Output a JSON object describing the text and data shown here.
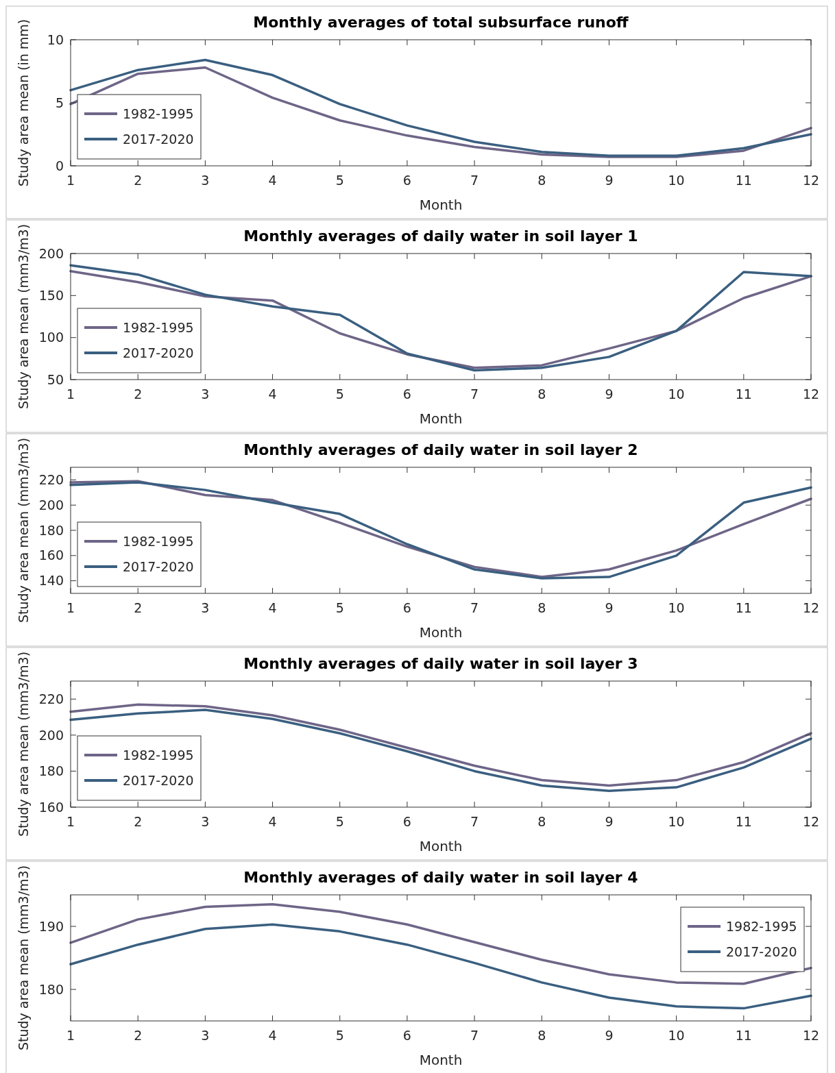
{
  "chart_data": [
    {
      "type": "line",
      "title": "Monthly averages of total subsurface runoff",
      "xlabel": "Month",
      "ylabel": "Study area mean (in mm)",
      "x": [
        1,
        2,
        3,
        4,
        5,
        6,
        7,
        8,
        9,
        10,
        11,
        12
      ],
      "xlim": [
        1,
        12
      ],
      "xticks": [
        1,
        2,
        3,
        4,
        5,
        6,
        7,
        8,
        9,
        10,
        11,
        12
      ],
      "ylim": [
        0,
        10
      ],
      "yticks": [
        0,
        5,
        10
      ],
      "grid": false,
      "legend": "bottom left",
      "series": [
        {
          "name": "1982-1995",
          "color": "#6e6587",
          "values": [
            4.9,
            7.3,
            7.8,
            5.4,
            3.6,
            2.4,
            1.5,
            0.9,
            0.7,
            0.7,
            1.2,
            3.0
          ]
        },
        {
          "name": "2017-2020",
          "color": "#3a5f80",
          "values": [
            6.0,
            7.6,
            8.4,
            7.2,
            4.9,
            3.2,
            1.9,
            1.1,
            0.8,
            0.8,
            1.4,
            2.5
          ]
        }
      ]
    },
    {
      "type": "line",
      "title": "Monthly averages of daily water in soil layer 1",
      "xlabel": "Month",
      "ylabel": "Study area mean (mm3/m3)",
      "x": [
        1,
        2,
        3,
        4,
        5,
        6,
        7,
        8,
        9,
        10,
        11,
        12
      ],
      "xlim": [
        1,
        12
      ],
      "xticks": [
        1,
        2,
        3,
        4,
        5,
        6,
        7,
        8,
        9,
        10,
        11,
        12
      ],
      "ylim": [
        50,
        200
      ],
      "yticks": [
        50,
        100,
        150,
        200
      ],
      "grid": false,
      "legend": "bottom left",
      "series": [
        {
          "name": "1982-1995",
          "color": "#6e6587",
          "values": [
            179,
            166,
            149,
            144,
            105,
            80,
            64,
            67,
            87,
            108,
            147,
            173
          ]
        },
        {
          "name": "2017-2020",
          "color": "#3a5f80",
          "values": [
            186,
            175,
            151,
            137,
            127,
            81,
            61,
            64,
            77,
            108,
            178,
            173
          ]
        }
      ]
    },
    {
      "type": "line",
      "title": "Monthly averages of daily water in soil layer 2",
      "xlabel": "Month",
      "ylabel": "Study area mean (mm3/m3)",
      "x": [
        1,
        2,
        3,
        4,
        5,
        6,
        7,
        8,
        9,
        10,
        11,
        12
      ],
      "xlim": [
        1,
        12
      ],
      "xticks": [
        1,
        2,
        3,
        4,
        5,
        6,
        7,
        8,
        9,
        10,
        11,
        12
      ],
      "ylim": [
        130,
        230
      ],
      "yticks": [
        140,
        160,
        180,
        200,
        220
      ],
      "grid": false,
      "legend": "bottom left",
      "series": [
        {
          "name": "1982-1995",
          "color": "#6e6587",
          "values": [
            218,
            219,
            208,
            204,
            186,
            167,
            151,
            143,
            149,
            164,
            185,
            205
          ]
        },
        {
          "name": "2017-2020",
          "color": "#3a5f80",
          "values": [
            216,
            218,
            212,
            202,
            193,
            169,
            149,
            142,
            143,
            160,
            202,
            214
          ]
        }
      ]
    },
    {
      "type": "line",
      "title": "Monthly averages of daily water in soil layer 3",
      "xlabel": "Month",
      "ylabel": "Study area mean (mm3/m3)",
      "x": [
        1,
        2,
        3,
        4,
        5,
        6,
        7,
        8,
        9,
        10,
        11,
        12
      ],
      "xlim": [
        1,
        12
      ],
      "xticks": [
        1,
        2,
        3,
        4,
        5,
        6,
        7,
        8,
        9,
        10,
        11,
        12
      ],
      "ylim": [
        160,
        230
      ],
      "yticks": [
        160,
        180,
        200,
        220
      ],
      "grid": false,
      "legend": "bottom left",
      "series": [
        {
          "name": "1982-1995",
          "color": "#6e6587",
          "values": [
            213,
            217,
            216,
            211,
            203,
            193,
            183,
            175,
            172,
            175,
            185,
            201
          ]
        },
        {
          "name": "2017-2020",
          "color": "#3a5f80",
          "values": [
            208.5,
            212,
            214,
            209,
            201,
            191,
            180,
            172,
            169,
            171,
            182,
            198
          ]
        }
      ]
    },
    {
      "type": "line",
      "title": "Monthly averages of daily water in soil layer 4",
      "xlabel": "Month",
      "ylabel": "Study area mean (mm3/m3)",
      "x": [
        1,
        2,
        3,
        4,
        5,
        6,
        7,
        8,
        9,
        10,
        11,
        12
      ],
      "xlim": [
        1,
        12
      ],
      "xticks": [
        1,
        2,
        3,
        4,
        5,
        6,
        7,
        8,
        9,
        10,
        11,
        12
      ],
      "ylim": [
        175,
        195
      ],
      "yticks": [
        180,
        190
      ],
      "grid": false,
      "legend": "top right",
      "series": [
        {
          "name": "1982-1995",
          "color": "#6e6587",
          "values": [
            187.4,
            191.1,
            193.1,
            193.5,
            192.3,
            190.3,
            187.5,
            184.7,
            182.4,
            181.1,
            180.9,
            183.4
          ]
        },
        {
          "name": "2017-2020",
          "color": "#3a5f80",
          "values": [
            184.0,
            187.1,
            189.6,
            190.3,
            189.2,
            187.1,
            184.2,
            181.1,
            178.7,
            177.3,
            177.0,
            179.0
          ]
        }
      ]
    }
  ]
}
